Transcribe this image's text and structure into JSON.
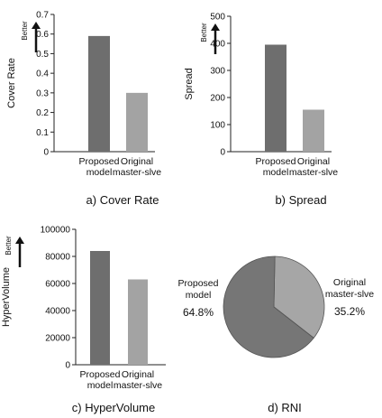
{
  "chart_data": [
    {
      "id": "a",
      "type": "bar",
      "categories": [
        [
          "Proposed",
          "model"
        ],
        [
          "Original",
          "master-slve"
        ]
      ],
      "values": [
        0.59,
        0.3
      ],
      "ylabel": "Cover Rate",
      "better_label": "Better",
      "ylim": [
        0,
        0.7
      ],
      "yticks": [
        "0",
        "0.1",
        "0.2",
        "0.3",
        "0.4",
        "0.5",
        "0.6",
        "0.7"
      ],
      "caption": "a) Cover Rate",
      "colors": [
        "#6e6e6e",
        "#a3a3a3"
      ]
    },
    {
      "id": "b",
      "type": "bar",
      "categories": [
        [
          "Proposed",
          "model"
        ],
        [
          "Original",
          "master-slve"
        ]
      ],
      "values": [
        395,
        155
      ],
      "ylabel": "Spread",
      "better_label": "Better",
      "ylim": [
        0,
        500
      ],
      "yticks": [
        "0",
        "100",
        "200",
        "300",
        "400",
        "500"
      ],
      "caption": "b) Spread",
      "colors": [
        "#6e6e6e",
        "#a3a3a3"
      ]
    },
    {
      "id": "c",
      "type": "bar",
      "categories": [
        [
          "Proposed",
          "model"
        ],
        [
          "Original",
          "master-slve"
        ]
      ],
      "values": [
        84000,
        63000
      ],
      "ylabel": "HyperVolume",
      "better_label": "Better",
      "ylim": [
        0,
        100000
      ],
      "yticks": [
        "0",
        "20000",
        "40000",
        "60000",
        "80000",
        "100000"
      ],
      "caption": "c) HyperVolume",
      "colors": [
        "#6e6e6e",
        "#a3a3a3"
      ]
    },
    {
      "id": "d",
      "type": "pie",
      "slices": [
        {
          "label": [
            "Proposed",
            "model"
          ],
          "value": 64.8,
          "pct": "64.8%"
        },
        {
          "label": [
            "Original",
            "master-slve"
          ],
          "value": 35.2,
          "pct": "35.2%"
        }
      ],
      "caption": "d) RNI",
      "colors": [
        "#767676",
        "#a6a6a6"
      ]
    }
  ]
}
